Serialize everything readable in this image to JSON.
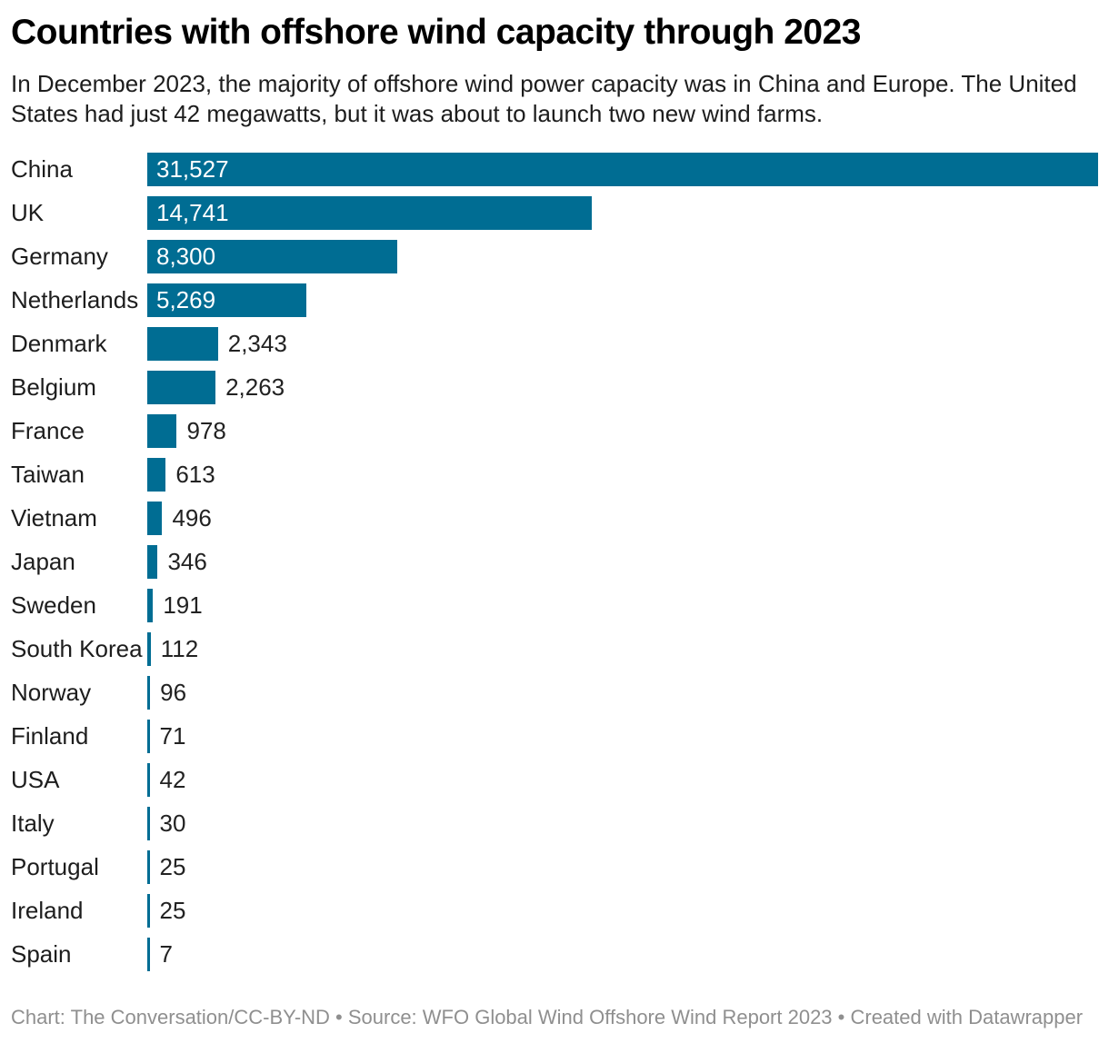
{
  "header": {
    "title": "Countries with offshore wind capacity through 2023",
    "subtitle": "In December 2023, the majority of offshore wind power capacity was in China and Europe. The United States had just 42 megawatts, but it was about to launch two new wind farms."
  },
  "chart_data": {
    "type": "bar",
    "orientation": "horizontal",
    "unit": "megawatts",
    "categories": [
      "China",
      "UK",
      "Germany",
      "Netherlands",
      "Denmark",
      "Belgium",
      "France",
      "Taiwan",
      "Vietnam",
      "Japan",
      "Sweden",
      "South Korea",
      "Norway",
      "Finland",
      "USA",
      "Italy",
      "Portugal",
      "Ireland",
      "Spain"
    ],
    "values": [
      31527,
      14741,
      8300,
      5269,
      2343,
      2263,
      978,
      613,
      496,
      346,
      191,
      112,
      96,
      71,
      42,
      30,
      25,
      25,
      7
    ],
    "value_labels": [
      "31,527",
      "14,741",
      "8,300",
      "5,269",
      "2,343",
      "2,263",
      "978",
      "613",
      "496",
      "346",
      "191",
      "112",
      "96",
      "71",
      "42",
      "30",
      "25",
      "25",
      "7"
    ],
    "xlim": [
      0,
      31527
    ],
    "grid": false,
    "legend": false,
    "bar_color": "#006d93",
    "inside_label_color": "#ffffff",
    "outside_label_color": "#222222"
  },
  "footer": {
    "text": "Chart: The Conversation/CC-BY-ND • Source: WFO Global Wind Offshore Wind Report 2023 • Created with Datawrapper"
  }
}
